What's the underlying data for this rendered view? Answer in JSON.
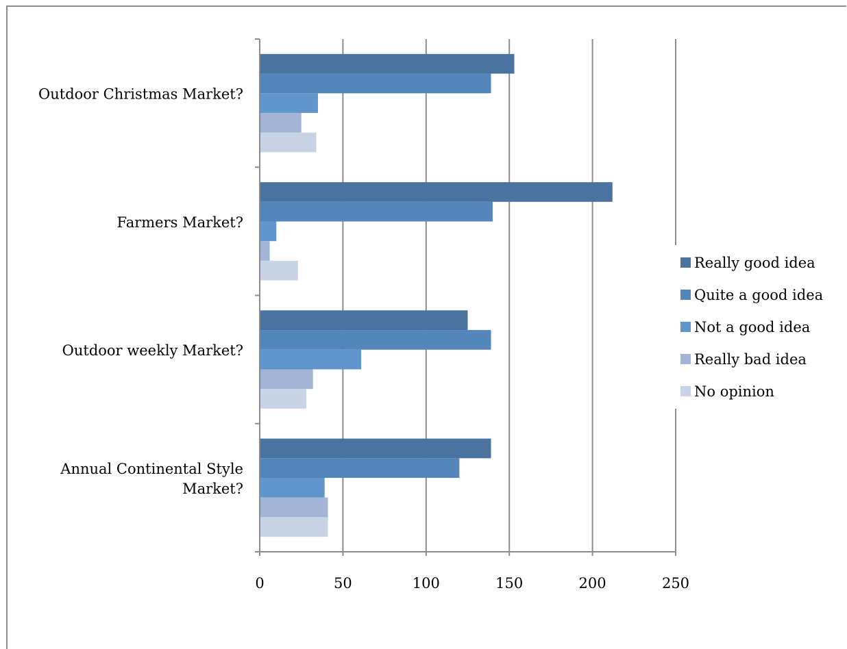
{
  "chart_data": {
    "type": "bar",
    "orientation": "horizontal",
    "categories": [
      "Outdoor Christmas Market?",
      "Farmers Market?",
      "Outdoor weekly Market?",
      "Annual Continental Style Market?"
    ],
    "category_lines": [
      [
        "Outdoor Christmas Market?"
      ],
      [
        "Farmers Market?"
      ],
      [
        "Outdoor weekly Market?"
      ],
      [
        "Annual Continental Style",
        "Market?"
      ]
    ],
    "series": [
      {
        "name": "Really good idea",
        "color": "#4a73a0",
        "values": [
          153,
          212,
          125,
          139
        ]
      },
      {
        "name": "Quite a good idea",
        "color": "#5486bb",
        "values": [
          139,
          140,
          139,
          120
        ]
      },
      {
        "name": "Not a good idea",
        "color": "#6196cc",
        "values": [
          35,
          10,
          61,
          39
        ]
      },
      {
        "name": "Really bad idea",
        "color": "#a3b5d6",
        "values": [
          25,
          6,
          32,
          41
        ]
      },
      {
        "name": "No opinion",
        "color": "#c9d3e6",
        "values": [
          34,
          23,
          28,
          41
        ]
      }
    ],
    "xlim": [
      0,
      250
    ],
    "xticks": [
      "0",
      "50",
      "100",
      "150",
      "200",
      "250"
    ],
    "grid": true,
    "legend_position": "right",
    "title": "",
    "xlabel": "",
    "ylabel": ""
  },
  "colors": {
    "gridline": "#8c8c8c",
    "axis": "#8c8c8c",
    "frame": "#8c8c8c"
  }
}
